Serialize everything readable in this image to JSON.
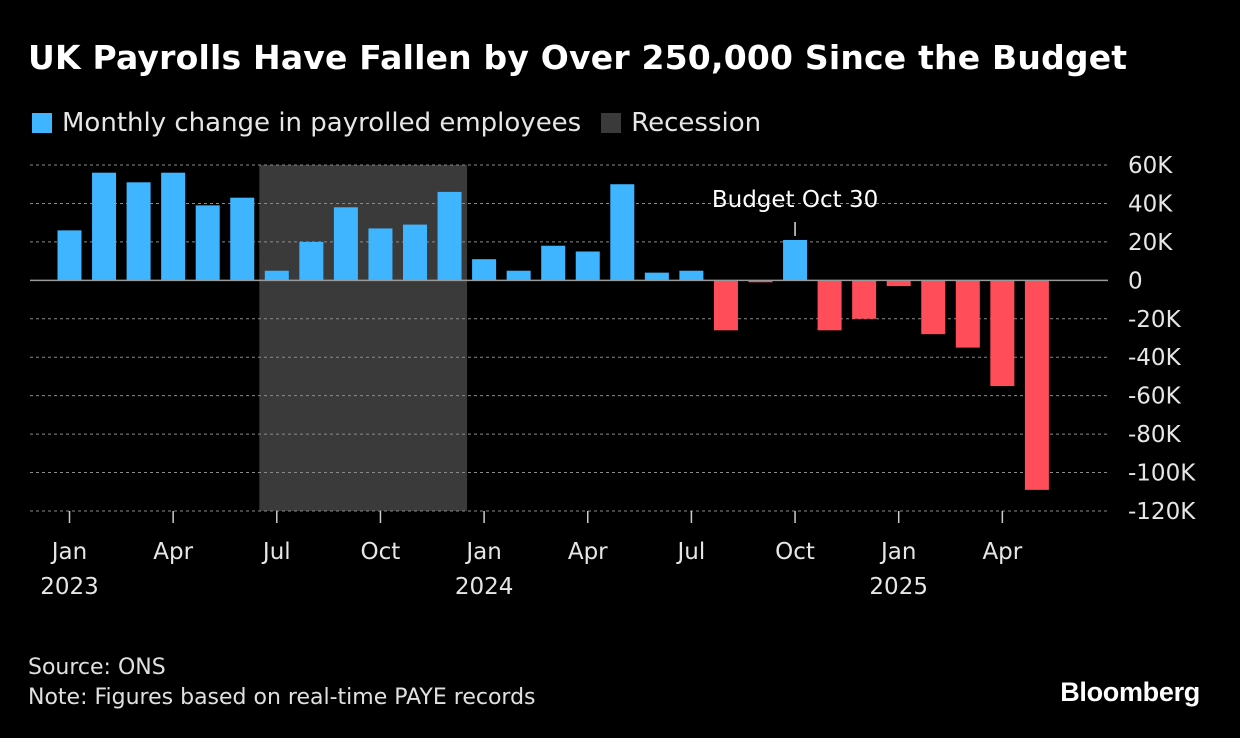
{
  "chart_data": {
    "type": "bar",
    "title": "UK Payrolls Have Fallen by Over 250,000 Since the Budget",
    "legend": [
      {
        "label": "Monthly change in payrolled employees",
        "color": "#3fb5ff"
      },
      {
        "label": "Recession",
        "color": "#3a3a3a"
      }
    ],
    "series": [
      {
        "name": "Monthly change in payrolled employees",
        "positive_color": "#3fb5ff",
        "negative_color": "#ff4d5a",
        "categories": [
          "Jan 2023",
          "Feb 2023",
          "Mar 2023",
          "Apr 2023",
          "May 2023",
          "Jun 2023",
          "Jul 2023",
          "Aug 2023",
          "Sep 2023",
          "Oct 2023",
          "Nov 2023",
          "Dec 2023",
          "Jan 2024",
          "Feb 2024",
          "Mar 2024",
          "Apr 2024",
          "May 2024",
          "Jun 2024",
          "Jul 2024",
          "Aug 2024",
          "Sep 2024",
          "Oct 2024",
          "Nov 2024",
          "Dec 2024",
          "Jan 2025",
          "Feb 2025",
          "Mar 2025",
          "Apr 2025",
          "May 2025"
        ],
        "values": [
          26000,
          56000,
          51000,
          56000,
          39000,
          43000,
          5000,
          20000,
          38000,
          27000,
          29000,
          46000,
          11000,
          5000,
          18000,
          15000,
          50000,
          4000,
          5000,
          -26000,
          -1000,
          21000,
          -26000,
          -20000,
          -3000,
          -28000,
          -35000,
          -55000,
          -109000
        ]
      }
    ],
    "recession": {
      "start_index": 6,
      "end_index": 11,
      "label": "Recession"
    },
    "annotation": {
      "text": "Budget Oct 30",
      "index": 21
    },
    "ylim": [
      -120000,
      60000
    ],
    "yticks": [
      {
        "value": 60000,
        "label": "60K"
      },
      {
        "value": 40000,
        "label": "40K"
      },
      {
        "value": 20000,
        "label": "20K"
      },
      {
        "value": 0,
        "label": "0"
      },
      {
        "value": -20000,
        "label": "-20K"
      },
      {
        "value": -40000,
        "label": "-40K"
      },
      {
        "value": -60000,
        "label": "-60K"
      },
      {
        "value": -80000,
        "label": "-80K"
      },
      {
        "value": -100000,
        "label": "-100K"
      },
      {
        "value": -120000,
        "label": "-120K"
      }
    ],
    "xticks": [
      {
        "index": 0,
        "month": "Jan",
        "year": "2023"
      },
      {
        "index": 3,
        "month": "Apr",
        "year": ""
      },
      {
        "index": 6,
        "month": "Jul",
        "year": ""
      },
      {
        "index": 9,
        "month": "Oct",
        "year": ""
      },
      {
        "index": 12,
        "month": "Jan",
        "year": "2024"
      },
      {
        "index": 15,
        "month": "Apr",
        "year": ""
      },
      {
        "index": 18,
        "month": "Jul",
        "year": ""
      },
      {
        "index": 21,
        "month": "Oct",
        "year": ""
      },
      {
        "index": 24,
        "month": "Jan",
        "year": "2025"
      },
      {
        "index": 27,
        "month": "Apr",
        "year": ""
      }
    ],
    "grid": true,
    "xlabel": "",
    "ylabel": ""
  },
  "footer": {
    "source": "Source: ONS",
    "note": "Note: Figures based on real-time PAYE records",
    "brand": "Bloomberg"
  }
}
